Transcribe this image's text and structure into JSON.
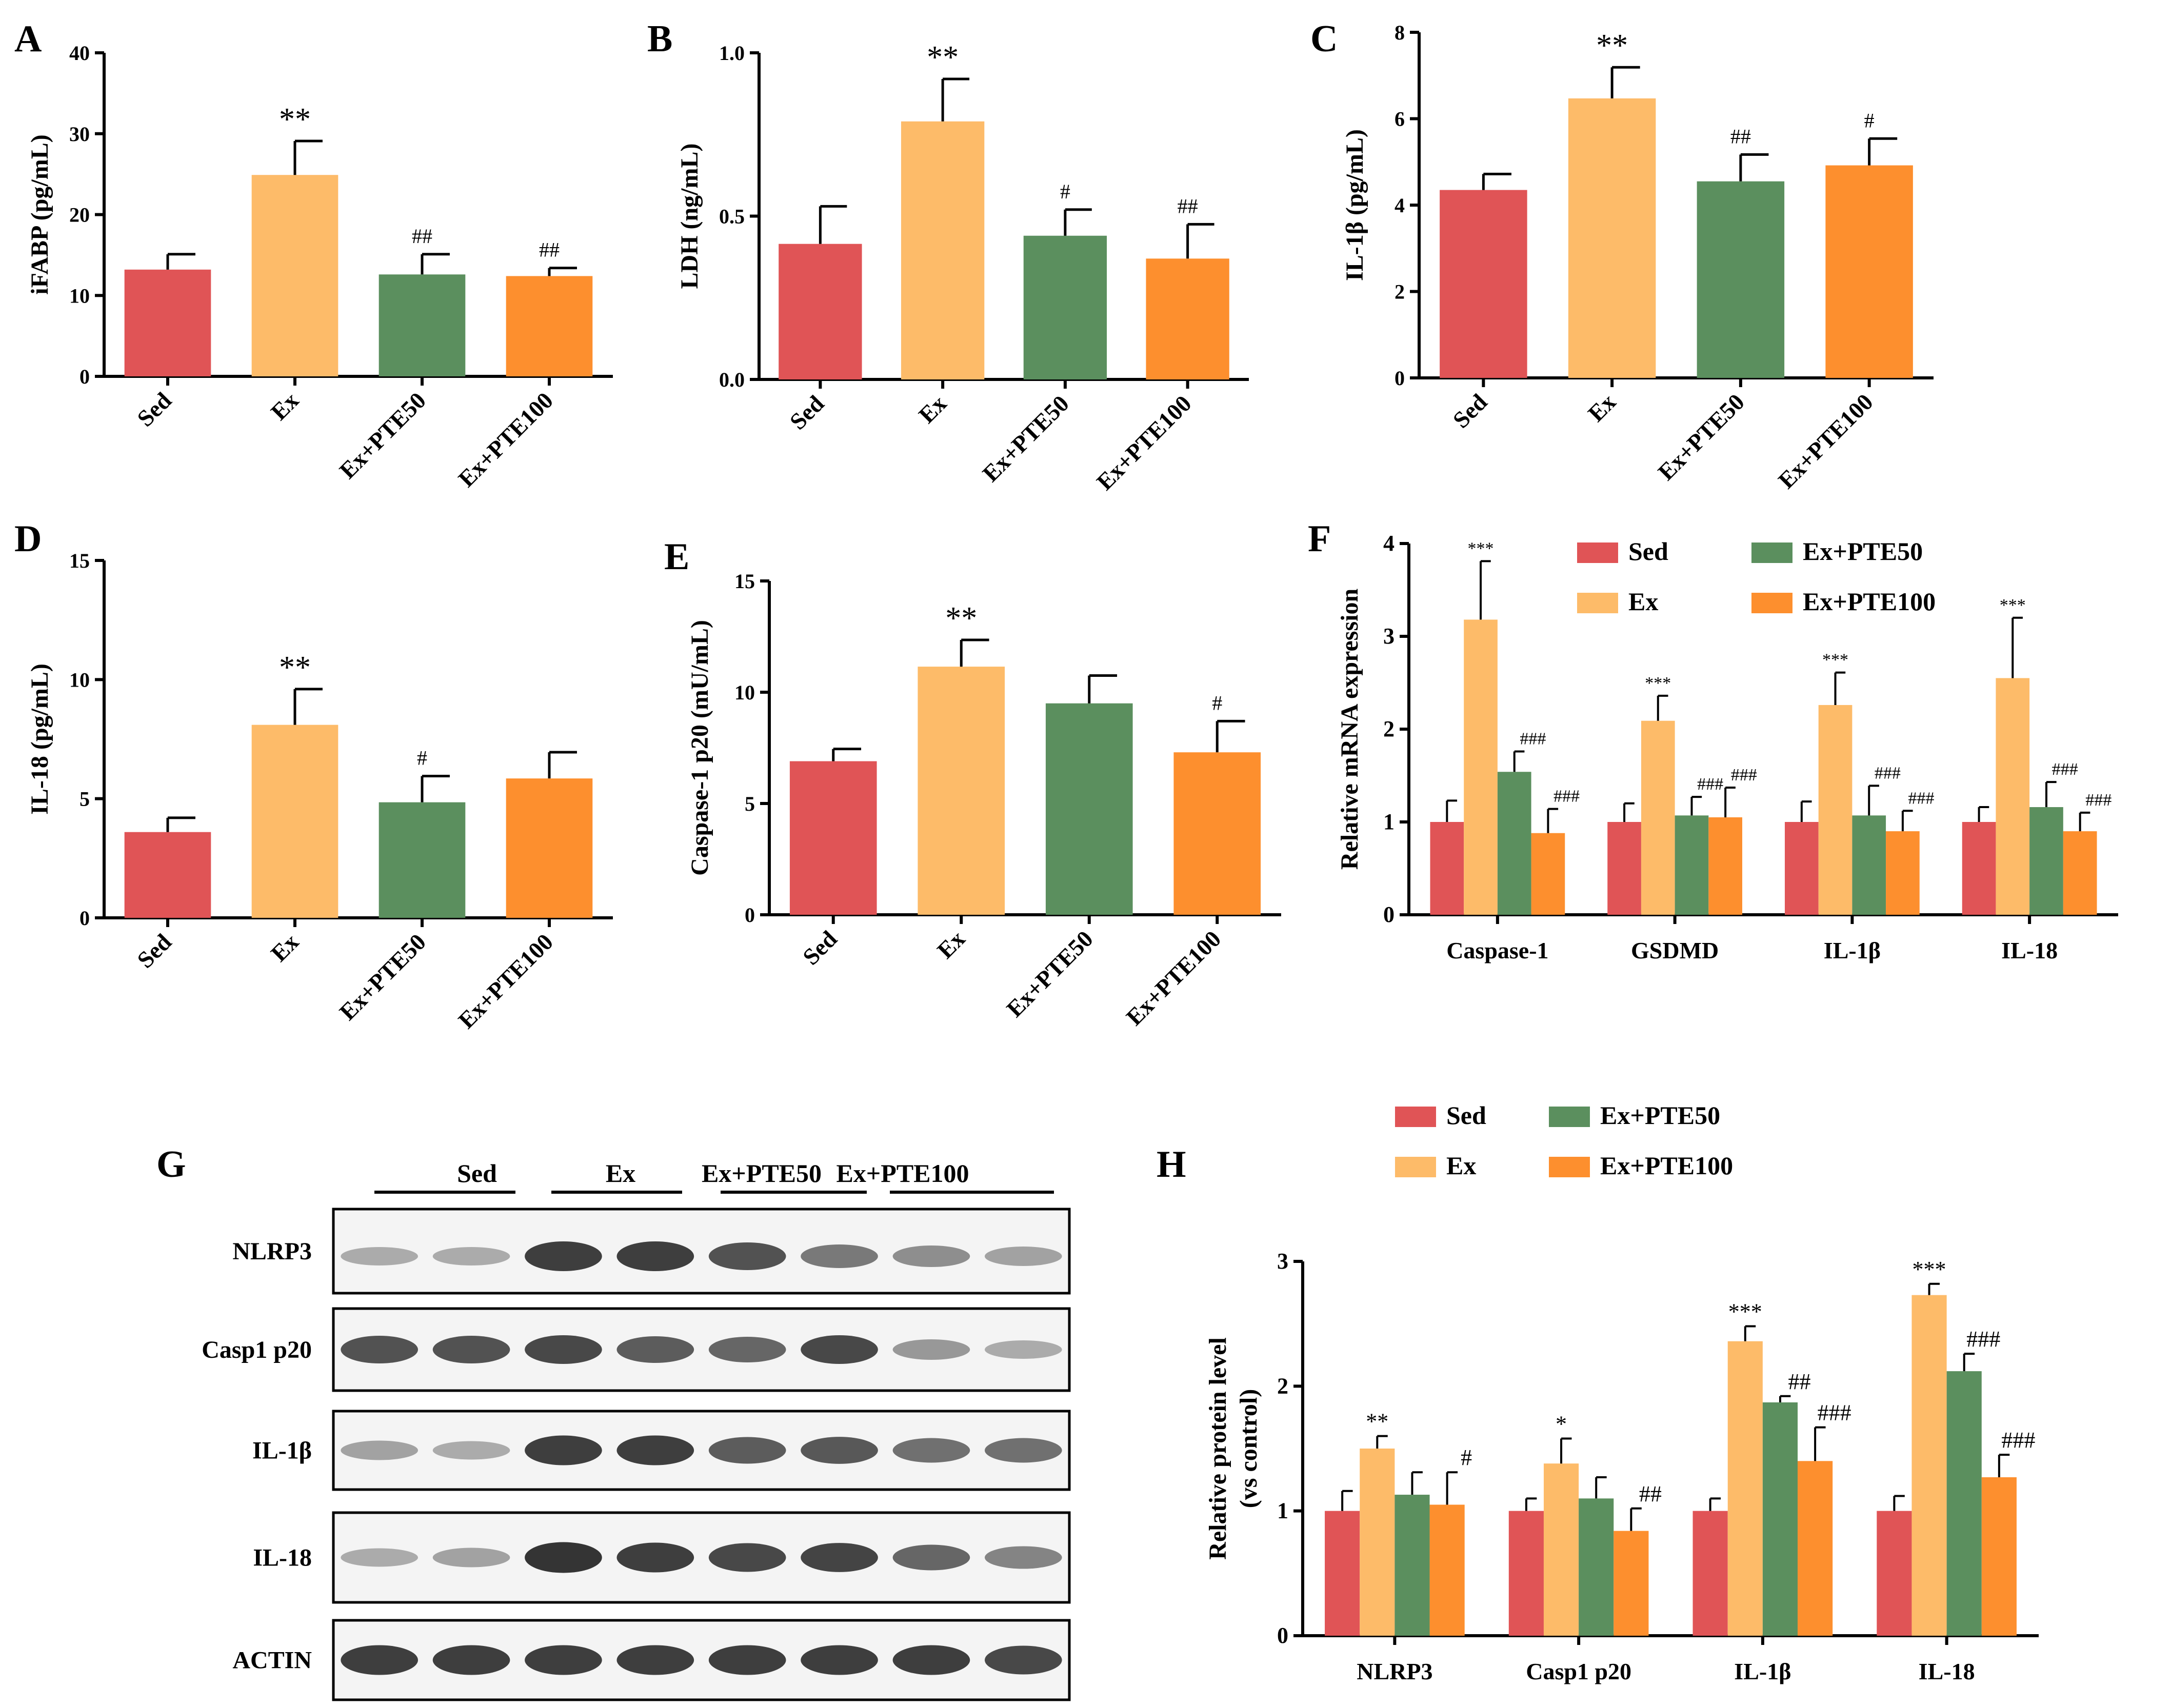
{
  "colors": {
    "sed": "#e05456",
    "ex": "#fdbb69",
    "pte50": "#5b8f5e",
    "pte100": "#fd8f2e"
  },
  "groups": [
    "Sed",
    "Ex",
    "Ex+PTE50",
    "Ex+PTE100"
  ],
  "chart_data": [
    {
      "panel": "A",
      "type": "bar",
      "ylabel": "iFABP (pg/mL)",
      "yticks": [
        "0",
        "10",
        "20",
        "30",
        "40"
      ],
      "ylim": [
        0,
        40
      ],
      "categories": [
        "Sed",
        "Ex",
        "Ex+PTE50",
        "Ex+PTE100"
      ],
      "values": [
        13.2,
        24.9,
        12.6,
        12.4
      ],
      "errors": [
        1.9,
        4.2,
        2.5,
        1.0
      ],
      "annotations": [
        "",
        "**",
        "##",
        "##"
      ]
    },
    {
      "panel": "B",
      "type": "bar",
      "ylabel": "LDH (ng/mL)",
      "yticks": [
        "0.0",
        "0.5",
        "1.0"
      ],
      "ylim": [
        0,
        1.0
      ],
      "categories": [
        "Sed",
        "Ex",
        "Ex+PTE50",
        "Ex+PTE100"
      ],
      "values": [
        0.415,
        0.79,
        0.44,
        0.37
      ],
      "errors": [
        0.115,
        0.13,
        0.08,
        0.105
      ],
      "annotations": [
        "",
        "**",
        "#",
        "##"
      ]
    },
    {
      "panel": "C",
      "type": "bar",
      "ylabel": "IL-1β (pg/mL)",
      "yticks": [
        "0",
        "2",
        "4",
        "6",
        "8"
      ],
      "ylim": [
        0,
        8
      ],
      "categories": [
        "Sed",
        "Ex",
        "Ex+PTE50",
        "Ex+PTE100"
      ],
      "values": [
        4.35,
        6.47,
        4.55,
        4.92
      ],
      "errors": [
        0.37,
        0.72,
        0.62,
        0.62
      ],
      "annotations": [
        "",
        "**",
        "##",
        "#"
      ]
    },
    {
      "panel": "D",
      "type": "bar",
      "ylabel": "IL-18 (pg/mL)",
      "yticks": [
        "0",
        "5",
        "10",
        "15"
      ],
      "ylim": [
        0,
        15
      ],
      "categories": [
        "Sed",
        "Ex",
        "Ex+PTE50",
        "Ex+PTE100"
      ],
      "values": [
        3.6,
        8.1,
        4.85,
        5.85
      ],
      "errors": [
        0.6,
        1.5,
        1.1,
        1.1
      ],
      "annotations": [
        "",
        "**",
        "#",
        ""
      ]
    },
    {
      "panel": "E",
      "type": "bar",
      "ylabel": "Caspase-1 p20 (mU/mL)",
      "yticks": [
        "0",
        "5",
        "10",
        "15"
      ],
      "ylim": [
        0,
        15
      ],
      "categories": [
        "Sed",
        "Ex",
        "Ex+PTE50",
        "Ex+PTE100"
      ],
      "values": [
        6.9,
        11.15,
        9.5,
        7.3
      ],
      "errors": [
        0.55,
        1.2,
        1.25,
        1.4
      ],
      "annotations": [
        "",
        "**",
        "",
        "#"
      ]
    },
    {
      "panel": "F",
      "type": "bar",
      "ylabel": "Relative mRNA expression",
      "yticks": [
        "0",
        "1",
        "2",
        "3",
        "4"
      ],
      "ylim": [
        0,
        4
      ],
      "categories": [
        "Caspase-1",
        "GSDMD",
        "IL-1β",
        "IL-18"
      ],
      "legend": [
        "Sed",
        "Ex",
        "Ex+PTE50",
        "Ex+PTE100"
      ],
      "series": [
        {
          "name": "Sed",
          "values": [
            1.0,
            1.0,
            1.0,
            1.0
          ],
          "errors": [
            0.23,
            0.2,
            0.22,
            0.16
          ],
          "annotations": [
            "",
            "",
            "",
            ""
          ]
        },
        {
          "name": "Ex",
          "values": [
            3.18,
            2.09,
            2.26,
            2.55
          ],
          "errors": [
            0.63,
            0.27,
            0.35,
            0.65
          ],
          "annotations": [
            "***",
            "***",
            "***",
            "***"
          ]
        },
        {
          "name": "Ex+PTE50",
          "values": [
            1.54,
            1.07,
            1.07,
            1.16
          ],
          "errors": [
            0.22,
            0.2,
            0.32,
            0.27
          ],
          "annotations": [
            "###",
            "###",
            "###",
            "###"
          ]
        },
        {
          "name": "Ex+PTE100",
          "values": [
            0.88,
            1.05,
            0.9,
            0.9
          ],
          "errors": [
            0.26,
            0.32,
            0.22,
            0.2
          ],
          "annotations": [
            "###",
            "###",
            "###",
            "###"
          ]
        }
      ]
    },
    {
      "panel": "H",
      "type": "bar",
      "ylabel_line1": "Relative protein level",
      "ylabel_line2": "(vs control)",
      "yticks": [
        "0",
        "1",
        "2",
        "3"
      ],
      "ylim": [
        0,
        3
      ],
      "categories": [
        "NLRP3",
        "Casp1 p20",
        "IL-1β",
        "IL-18"
      ],
      "legend": [
        "Sed",
        "Ex",
        "Ex+PTE50",
        "Ex+PTE100"
      ],
      "series": [
        {
          "name": "Sed",
          "values": [
            1.0,
            1.0,
            1.0,
            1.0
          ],
          "errors": [
            0.16,
            0.1,
            0.1,
            0.12
          ],
          "annotations": [
            "",
            "",
            "",
            ""
          ]
        },
        {
          "name": "Ex",
          "values": [
            1.5,
            1.38,
            2.36,
            2.73
          ],
          "errors": [
            0.1,
            0.2,
            0.12,
            0.09
          ],
          "annotations": [
            "**",
            "*",
            "***",
            "***"
          ]
        },
        {
          "name": "Ex+PTE50",
          "values": [
            1.13,
            1.1,
            1.87,
            2.12
          ],
          "errors": [
            0.18,
            0.17,
            0.05,
            0.14
          ],
          "annotations": [
            "",
            "",
            "##",
            "###"
          ]
        },
        {
          "name": "Ex+PTE100",
          "values": [
            1.05,
            0.84,
            1.4,
            1.27
          ],
          "errors": [
            0.26,
            0.18,
            0.27,
            0.18
          ],
          "annotations": [
            "#",
            "##",
            "###",
            "###"
          ]
        }
      ]
    }
  ],
  "western_blot": {
    "panel": "G",
    "group_labels": [
      "Sed",
      "Ex",
      "Ex+PTE50",
      "Ex+PTE100"
    ],
    "rows": [
      {
        "label": "NLRP3",
        "intensities": [
          0.3,
          0.3,
          0.85,
          0.85,
          0.75,
          0.55,
          0.45,
          0.35
        ]
      },
      {
        "label": "Casp1 p20",
        "intensities": [
          0.75,
          0.75,
          0.8,
          0.7,
          0.65,
          0.8,
          0.4,
          0.3
        ]
      },
      {
        "label": "IL-1β",
        "intensities": [
          0.35,
          0.3,
          0.85,
          0.85,
          0.7,
          0.72,
          0.6,
          0.6
        ]
      },
      {
        "label": "IL-18",
        "intensities": [
          0.3,
          0.35,
          0.9,
          0.85,
          0.8,
          0.82,
          0.65,
          0.5
        ]
      },
      {
        "label": "ACTIN",
        "intensities": [
          0.85,
          0.85,
          0.85,
          0.85,
          0.85,
          0.85,
          0.85,
          0.8
        ]
      }
    ]
  }
}
